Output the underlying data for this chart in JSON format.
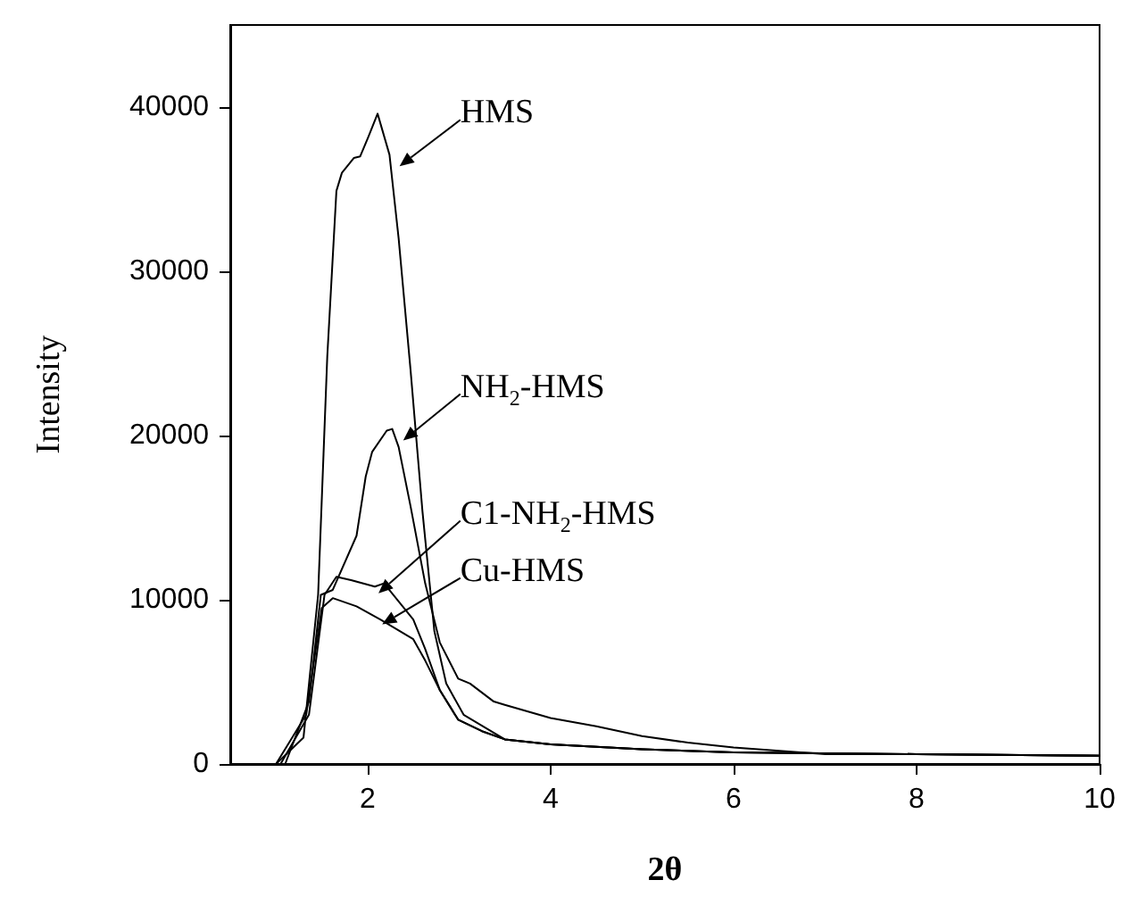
{
  "chart_data": {
    "type": "line",
    "xlabel": "2θ",
    "ylabel": "Intensity",
    "xlim": [
      0.5,
      10
    ],
    "xticks": [
      2,
      4,
      6,
      8,
      10
    ],
    "ylim": [
      0,
      45000
    ],
    "yticks": [
      0,
      10000,
      20000,
      30000,
      40000
    ],
    "grid": false,
    "marker": "none",
    "line_style": "solid",
    "series": [
      {
        "color": "#000000",
        "x": [
          0.5,
          1.0,
          1.3,
          1.46,
          1.56,
          1.66,
          1.72,
          1.85,
          1.92,
          2.01,
          2.11,
          2.24,
          2.34,
          2.47,
          2.6,
          2.73,
          2.86,
          3.05,
          3.5,
          4,
          5,
          6,
          8,
          10
        ],
        "values": [
          0,
          0,
          1600,
          10300,
          24800,
          34900,
          36000,
          36900,
          37000,
          38200,
          39600,
          37100,
          32000,
          24000,
          15400,
          8100,
          4900,
          3000,
          1500,
          1200,
          900,
          700,
          600,
          500
        ]
      },
      {
        "color": "#000000",
        "x": [
          0.5,
          1.1,
          1.36,
          1.49,
          1.62,
          1.88,
          1.98,
          2.05,
          2.21,
          2.27,
          2.34,
          2.47,
          2.63,
          2.79,
          2.99,
          3.12,
          3.38,
          3.5,
          4,
          4.5,
          5,
          5.5,
          6,
          7,
          8,
          10
        ],
        "values": [
          0,
          0,
          3800,
          10300,
          10600,
          13900,
          17500,
          19000,
          20300,
          20400,
          19300,
          15700,
          11000,
          7400,
          5200,
          4900,
          3800,
          3600,
          2800,
          2300,
          1700,
          1300,
          1000,
          600,
          600,
          500
        ]
      },
      {
        "color": "#000000",
        "x": [
          0.5,
          1.05,
          1.36,
          1.53,
          1.66,
          1.82,
          2.08,
          2.18,
          2.34,
          2.5,
          2.63,
          2.79,
          2.99,
          3.25,
          3.5,
          4,
          5,
          6,
          8,
          10
        ],
        "values": [
          0,
          0,
          3000,
          10300,
          11400,
          11200,
          10800,
          11000,
          9900,
          8800,
          7000,
          4500,
          2700,
          2000,
          1500,
          1200,
          900,
          700,
          600,
          500
        ]
      },
      {
        "color": "#000000",
        "x": [
          0.5,
          1.0,
          1.33,
          1.5,
          1.62,
          1.88,
          2.14,
          2.5,
          2.63,
          2.79,
          2.99,
          3.25,
          3.5,
          4,
          5,
          6,
          8,
          10
        ],
        "values": [
          0,
          0,
          3000,
          9500,
          10100,
          9600,
          8800,
          7600,
          6300,
          4500,
          2700,
          2000,
          1500,
          1200,
          900,
          700,
          600,
          500
        ]
      }
    ],
    "annotations": [
      {
        "text": "HMS",
        "x": 2.35,
        "y": 36400
      },
      {
        "text": "NH$_{2}$-HMS",
        "x": 2.39,
        "y": 19700
      },
      {
        "text": "C1-NH$_{2}$-HMS",
        "x": 2.12,
        "y": 10400
      },
      {
        "text": "Cu-HMS",
        "x": 2.16,
        "y": 8500
      }
    ]
  }
}
